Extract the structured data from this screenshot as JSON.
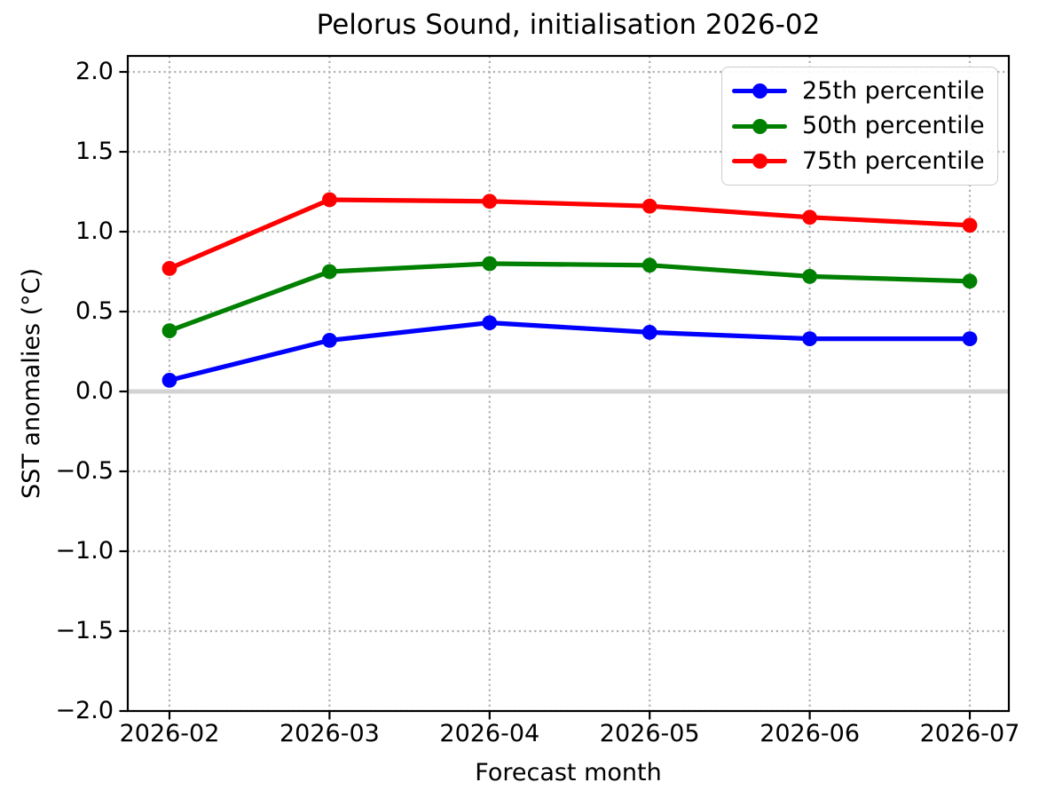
{
  "chart_data": {
    "type": "line",
    "title": "Pelorus Sound, initialisation 2026-02",
    "xlabel": "Forecast month",
    "ylabel": "SST anomalies (°C)",
    "categories": [
      "2026-02",
      "2026-03",
      "2026-04",
      "2026-05",
      "2026-06",
      "2026-07"
    ],
    "series": [
      {
        "name": "25th percentile",
        "color": "#0000ff",
        "values": [
          0.07,
          0.32,
          0.43,
          0.37,
          0.33,
          0.33
        ]
      },
      {
        "name": "50th percentile",
        "color": "#008000",
        "values": [
          0.38,
          0.75,
          0.8,
          0.79,
          0.72,
          0.69
        ]
      },
      {
        "name": "75th percentile",
        "color": "#ff0000",
        "values": [
          0.77,
          1.2,
          1.19,
          1.16,
          1.09,
          1.04
        ]
      }
    ],
    "ylim": [
      -2.0,
      2.1
    ],
    "yticks": [
      2.0,
      1.5,
      1.0,
      0.5,
      0.0,
      -0.5,
      -1.0,
      -1.5,
      -2.0
    ],
    "ytick_labels": [
      "2.0",
      "1.5",
      "1.0",
      "0.5",
      "0.0",
      "−0.5",
      "−1.0",
      "−1.5",
      "−2.0"
    ],
    "grid": true,
    "grid_style": "dotted",
    "legend_position": "upper right",
    "zero_line": true,
    "colors": {
      "grid": "#b0b0b0",
      "zero_line": "#d3d3d3",
      "axis": "#000000",
      "background": "#ffffff",
      "legend_border": "#cccccc"
    }
  }
}
